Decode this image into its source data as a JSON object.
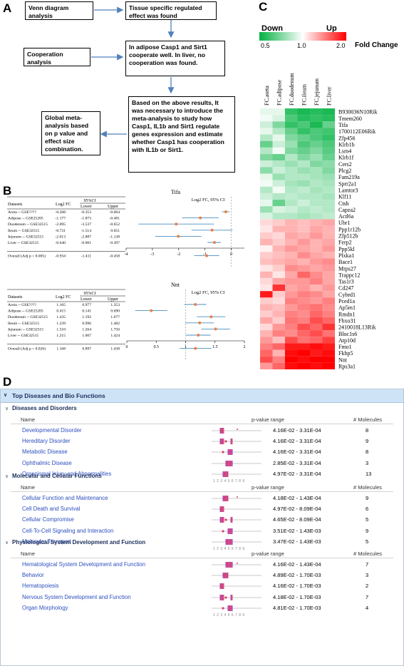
{
  "panel_letters": {
    "a": "A",
    "b": "B",
    "c": "C",
    "d": "D"
  },
  "panelA": {
    "boxes": {
      "venn": "Venn diagram analysis",
      "tissue": "Tissue specific regulated effect was found",
      "coop": "Cooperation analysis",
      "adipose": "In adipose Casp1 and Sirt1 cooperate well. In liver, no cooperation was found.",
      "based": "Based on the above results, It was necessary to introduce the meta-analysis to study how Casp1, IL1b and Sirt1 regulate genes expression and estimate whether Casp1 has cooperation with IL1b or Sirt1.",
      "global": "Global meta-analysis based on p value and effect size combination."
    }
  },
  "panelB": {
    "tables": [
      {
        "gene": "Tifa",
        "header": {
          "datasets": "Datasets",
          "fc": "Log2 FC",
          "ci": "95%CI",
          "lower": "Lower",
          "upper": "Upper",
          "axis_title": "Log2 FC, 95% CI"
        },
        "rows": [
          {
            "name": "Aorta -- GSE????",
            "fc": "-0.208",
            "lower": "-0.353",
            "upper": "-0.064",
            "v": -0.208,
            "lo": -0.353,
            "hi": -0.064
          },
          {
            "name": "Adipose -- GSE25205",
            "fc": "-1.177",
            "lower": "-1.873",
            "upper": "-0.481",
            "v": -1.177,
            "lo": -1.873,
            "hi": -0.481
          },
          {
            "name": "Duodenum -- GSE32515",
            "fc": "-2.095",
            "lower": "-3.537",
            "upper": "-0.652",
            "v": -2.095,
            "lo": -3.537,
            "hi": -0.652
          },
          {
            "name": "Ileum -- GSE32515",
            "fc": "-0.731",
            "lower": "-1.514",
            "upper": "0.051",
            "v": -0.731,
            "lo": -1.514,
            "hi": 0.051
          },
          {
            "name": "Jejunum -- GSE32515",
            "fc": "-2.013",
            "lower": "-2.887",
            "upper": "-1.138",
            "v": -2.013,
            "lo": -2.887,
            "hi": -1.138
          },
          {
            "name": "Liver -- GSE32515",
            "fc": "-0.640",
            "lower": "-0.901",
            "upper": "-0.397",
            "v": -0.64,
            "lo": -0.901,
            "hi": -0.397
          }
        ],
        "overall": {
          "name": "Overall (Adj p = 0.005)",
          "fc": "-0.934",
          "lower": "-1.411",
          "upper": "-0.458",
          "v": -0.934,
          "lo": -1.411,
          "hi": -0.458
        },
        "axis": {
          "min": -4,
          "max": 0.5,
          "ticks": [
            -4,
            -3,
            -2,
            -1,
            0
          ],
          "tick_labels": [
            "-4",
            "-3",
            "-2",
            "-1",
            "0"
          ]
        }
      },
      {
        "gene": "Nnt",
        "header": {
          "datasets": "Datasets",
          "fc": "Log2 FC",
          "ci": "95%CI",
          "lower": "Lower",
          "upper": "Upper",
          "axis_title": "Log2 FC, 95% CI"
        },
        "rows": [
          {
            "name": "Aorta -- GSE????",
            "fc": "1.165",
            "lower": "0.977",
            "upper": "1.353",
            "v": 1.165,
            "lo": 0.977,
            "hi": 1.353
          },
          {
            "name": "Adipose -- GSE25205",
            "fc": "0.415",
            "lower": "0.141",
            "upper": "0.690",
            "v": 0.415,
            "lo": 0.141,
            "hi": 0.69
          },
          {
            "name": "Duodenum -- GSE32515",
            "fc": "1.435",
            "lower": "1.192",
            "upper": "1.677",
            "v": 1.435,
            "lo": 1.192,
            "hi": 1.677
          },
          {
            "name": "Ileum -- GSE32515",
            "fc": "1.239",
            "lower": "0.996",
            "upper": "1.482",
            "v": 1.239,
            "lo": 0.996,
            "hi": 1.482
          },
          {
            "name": "Jejunum -- GSE32515",
            "fc": "1.510",
            "lower": "1.264",
            "upper": "1.756",
            "v": 1.51,
            "lo": 1.264,
            "hi": 1.756
          },
          {
            "name": "Liver -- GSE32515",
            "fc": "1.215",
            "lower": "1.007",
            "upper": "1.424",
            "v": 1.215,
            "lo": 1.007,
            "hi": 1.424
          }
        ],
        "overall": {
          "name": "Overall (Adj p = 0.026)",
          "fc": "1.168",
          "lower": "0.897",
          "upper": "1.438",
          "v": 1.168,
          "lo": 0.897,
          "hi": 1.438
        },
        "axis": {
          "min": 0,
          "max": 2,
          "ticks": [
            0,
            0.5,
            1,
            1.5,
            2
          ],
          "tick_labels": [
            "0",
            "0.5",
            "1",
            "1.5",
            "2"
          ]
        }
      }
    ]
  },
  "panelC": {
    "legend": {
      "down": "Down",
      "up": "Up",
      "scale_labels": [
        "0.5",
        "1.0",
        "2.0"
      ],
      "title": "Fold Change",
      "low_color": "#00b140",
      "mid_color": "#ffffff",
      "high_color": "#ff0000"
    },
    "columns": [
      "FC.aorta",
      "FC.adipose",
      "FC.duodenum",
      "FC.ileum",
      "FC.jejunum",
      "FC.liver"
    ],
    "genes": [
      "B930036N10Rik",
      "Tmem260",
      "Tifa",
      "1700112E06Rik",
      "Zfp456",
      "Klrb1b",
      "Lsm4",
      "Klrb1f",
      "Cers2",
      "Plcg2",
      "Fam219a",
      "Sprr2a1",
      "Lamtor3",
      "Klf11",
      "Ctsh",
      "Capza2",
      "Actl6a",
      "Ubr1",
      "Ppp1r12b",
      "Zfp512b",
      "Ferp2",
      "Ppp5kl",
      "Plxka1",
      "Bace1",
      "Mrps27",
      "Trappc12",
      "Tas1r3",
      "Cd247",
      "Cybrd1",
      "Pced1a",
      "Ap5m1",
      "Rmdn1",
      "Fbxo31",
      "2410018L13Rik",
      "Bloc1s6",
      "Atp10d",
      "Fmo1",
      "Fkbp5",
      "Nnt",
      "Rps3a1"
    ],
    "matrix": [
      [
        -0.1,
        -0.1,
        -0.8,
        -0.9,
        -0.85,
        -0.9
      ],
      [
        -0.05,
        -0.15,
        -0.7,
        -0.85,
        -0.8,
        -0.85
      ],
      [
        -0.2,
        -0.5,
        -0.8,
        -0.7,
        -0.9,
        -0.6
      ],
      [
        -0.1,
        -0.3,
        -0.6,
        -0.8,
        -0.7,
        -0.75
      ],
      [
        -0.3,
        -0.1,
        -0.5,
        -0.6,
        -0.7,
        -0.8
      ],
      [
        -0.6,
        -0.2,
        -0.4,
        -0.7,
        -0.6,
        -0.7
      ],
      [
        -0.3,
        -0.05,
        -0.5,
        -0.6,
        -0.5,
        -0.65
      ],
      [
        -0.5,
        -0.6,
        -0.3,
        -0.5,
        -0.4,
        -0.6
      ],
      [
        -0.2,
        -0.3,
        -0.4,
        -0.3,
        -0.5,
        -0.45
      ],
      [
        -0.45,
        -0.2,
        -0.3,
        -0.4,
        -0.35,
        -0.5
      ],
      [
        -0.1,
        -0.4,
        -0.3,
        -0.3,
        -0.35,
        -0.4
      ],
      [
        -0.05,
        -0.2,
        -0.35,
        -0.4,
        -0.3,
        -0.35
      ],
      [
        -0.3,
        -0.05,
        -0.3,
        -0.25,
        -0.35,
        -0.3
      ],
      [
        -0.2,
        -0.3,
        -0.25,
        -0.3,
        -0.3,
        -0.35
      ],
      [
        -0.1,
        -0.6,
        -0.3,
        -0.2,
        -0.3,
        -0.3
      ],
      [
        -0.4,
        -0.15,
        -0.2,
        -0.3,
        -0.25,
        -0.3
      ],
      [
        -0.15,
        -0.3,
        -0.3,
        -0.35,
        -0.3,
        -0.25
      ],
      [
        0.15,
        0.2,
        0.3,
        0.25,
        0.3,
        0.35
      ],
      [
        0.1,
        0.3,
        0.3,
        0.25,
        0.35,
        0.3
      ],
      [
        0.2,
        0.15,
        0.35,
        0.3,
        0.4,
        0.3
      ],
      [
        0.3,
        0.2,
        0.3,
        0.4,
        0.3,
        0.35
      ],
      [
        0.05,
        0.3,
        0.4,
        0.35,
        0.3,
        0.4
      ],
      [
        0.2,
        0.25,
        0.3,
        0.45,
        0.35,
        0.3
      ],
      [
        0.25,
        0.3,
        0.35,
        0.3,
        0.4,
        0.45
      ],
      [
        0.1,
        0.2,
        0.45,
        0.4,
        0.35,
        0.4
      ],
      [
        0.3,
        0.1,
        0.35,
        0.6,
        0.45,
        0.35
      ],
      [
        0.15,
        0.35,
        0.4,
        0.4,
        0.5,
        0.35
      ],
      [
        0.1,
        0.8,
        0.35,
        0.4,
        0.3,
        0.4
      ],
      [
        0.9,
        0.2,
        0.4,
        0.5,
        0.45,
        0.35
      ],
      [
        0.2,
        0.15,
        0.5,
        0.45,
        0.4,
        0.5
      ],
      [
        0.3,
        0.25,
        0.4,
        0.5,
        0.55,
        0.45
      ],
      [
        0.2,
        0.3,
        0.5,
        0.45,
        0.6,
        0.5
      ],
      [
        0.35,
        0.2,
        0.55,
        0.5,
        0.7,
        0.6
      ],
      [
        0.15,
        0.4,
        0.5,
        0.7,
        0.6,
        0.8
      ],
      [
        0.3,
        0.5,
        0.45,
        0.6,
        0.7,
        0.55
      ],
      [
        0.4,
        0.25,
        0.7,
        0.55,
        0.6,
        0.75
      ],
      [
        0.5,
        0.6,
        0.9,
        0.9,
        0.95,
        0.9
      ],
      [
        0.6,
        0.3,
        0.95,
        1.0,
        0.9,
        0.95
      ],
      [
        0.7,
        0.5,
        1.0,
        0.95,
        1.0,
        1.0
      ],
      [
        0.4,
        0.6,
        0.95,
        1.0,
        0.95,
        1.0
      ]
    ]
  },
  "panelD": {
    "title": "Top Diseases and Bio Functions",
    "col_name": "Name",
    "col_pvalue": "p-value range",
    "col_molecules": "# Molecules",
    "axis_digits": "1 2 3 4 5 6 7 8 9",
    "sections": [
      {
        "title": "Diseases and Disorders",
        "rows": [
          {
            "name": "Developmental Disorder",
            "p": "4.16E-02 - 3.31E-04",
            "n": "8"
          },
          {
            "name": "Hereditary Disorder",
            "p": "4.16E-02 - 3.31E-04",
            "n": "9"
          },
          {
            "name": "Metabolic Disease",
            "p": "4.16E-02 - 3.31E-04",
            "n": "8"
          },
          {
            "name": "Ophthalmic Disease",
            "p": "2.85E-02 - 3.31E-04",
            "n": "3"
          },
          {
            "name": "Organismal Injury and Abnormalities",
            "p": "4.97E-02 - 3.31E-04",
            "n": "13"
          }
        ]
      },
      {
        "title": "Molecular and Cellular Functions",
        "rows": [
          {
            "name": "Cellular Function and Maintenance",
            "p": "4.18E-02 - 1.43E-04",
            "n": "9"
          },
          {
            "name": "Cell Death and Survival",
            "p": "4.97E-02 - 8.09E-04",
            "n": "6"
          },
          {
            "name": "Cellular Compromise",
            "p": "4.65E-02 - 8.09E-04",
            "n": "5"
          },
          {
            "name": "Cell-To-Cell Signaling and Interaction",
            "p": "3.51E-02 - 1.43E-03",
            "n": "9"
          },
          {
            "name": "Molecular Transport",
            "p": "3.47E-02 - 1.43E-03",
            "n": "5"
          }
        ]
      },
      {
        "title": "Physiological System Development and Function",
        "rows": [
          {
            "name": "Hematological System Development and Function",
            "p": "4.16E-02 - 1.43E-04",
            "n": "7"
          },
          {
            "name": "Behavior",
            "p": "4.89E-02 - 1.70E-03",
            "n": "3"
          },
          {
            "name": "Hematopoiesis",
            "p": "4.16E-02 - 1.70E-03",
            "n": "2"
          },
          {
            "name": "Nervous System Development and Function",
            "p": "4.18E-02 - 1.70E-03",
            "n": "7"
          },
          {
            "name": "Organ Morphology",
            "p": "4.81E-02 - 1.70E-03",
            "n": "4"
          }
        ]
      }
    ]
  }
}
